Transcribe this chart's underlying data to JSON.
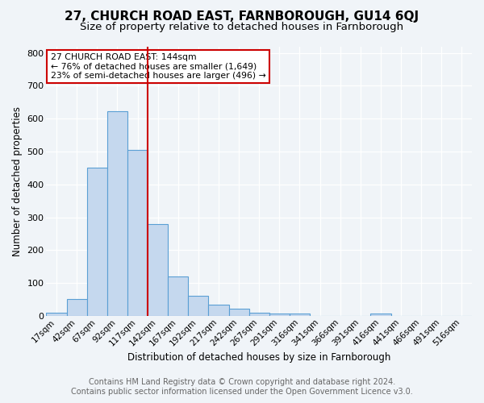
{
  "title": "27, CHURCH ROAD EAST, FARNBOROUGH, GU14 6QJ",
  "subtitle": "Size of property relative to detached houses in Farnborough",
  "xlabel": "Distribution of detached houses by size in Farnborough",
  "ylabel": "Number of detached properties",
  "categories": [
    "17sqm",
    "42sqm",
    "67sqm",
    "92sqm",
    "117sqm",
    "142sqm",
    "167sqm",
    "192sqm",
    "217sqm",
    "242sqm",
    "267sqm",
    "291sqm",
    "316sqm",
    "341sqm",
    "366sqm",
    "391sqm",
    "416sqm",
    "441sqm",
    "466sqm",
    "491sqm",
    "516sqm"
  ],
  "values": [
    10,
    50,
    450,
    622,
    505,
    280,
    120,
    60,
    35,
    22,
    10,
    8,
    8,
    0,
    0,
    0,
    8,
    0,
    0,
    0,
    0
  ],
  "bar_color": "#c5d8ee",
  "bar_edge_color": "#5a9fd4",
  "marker_color": "#cc0000",
  "annotation_line1": "27 CHURCH ROAD EAST: 144sqm",
  "annotation_line2": "← 76% of detached houses are smaller (1,649)",
  "annotation_line3": "23% of semi-detached houses are larger (496) →",
  "annotation_box_color": "#cc0000",
  "ylim": [
    0,
    820
  ],
  "yticks": [
    0,
    100,
    200,
    300,
    400,
    500,
    600,
    700,
    800
  ],
  "footer_line1": "Contains HM Land Registry data © Crown copyright and database right 2024.",
  "footer_line2": "Contains public sector information licensed under the Open Government Licence v3.0.",
  "background_color": "#f0f4f8",
  "plot_background_color": "#f0f4f8",
  "title_fontsize": 11,
  "subtitle_fontsize": 9.5,
  "footer_fontsize": 7,
  "red_line_x": 4.5
}
